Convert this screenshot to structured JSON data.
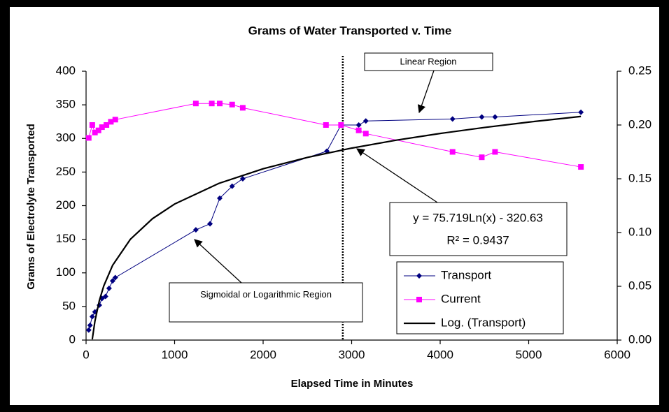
{
  "chart_data": {
    "type": "line",
    "title": "Grams of Water Transported v. Time",
    "xlabel": "Elapsed Time in Minutes",
    "ylabel": "Grams of Electrolyte Transported",
    "xlim": [
      0,
      6000
    ],
    "xticks": [
      0,
      1000,
      2000,
      3000,
      4000,
      5000,
      6000
    ],
    "ylim": [
      0,
      400
    ],
    "yticks": [
      0,
      50,
      100,
      150,
      200,
      250,
      300,
      350,
      400
    ],
    "y2lim": [
      0,
      0.25
    ],
    "y2ticks": [
      {
        "value": 0,
        "label": "0.00"
      },
      0.05,
      {
        "value": 0.1,
        "label": "0.10"
      },
      0.15,
      {
        "value": 0.2,
        "label": "0.20"
      },
      0.25
    ],
    "series": [
      {
        "name": "Transport",
        "color": "#000080",
        "marker": "diamond",
        "x": [
          30,
          45,
          70,
          100,
          150,
          180,
          220,
          260,
          300,
          330,
          1240,
          1400,
          1510,
          1650,
          1770,
          2720,
          2880,
          3080,
          3160,
          4140,
          4470,
          4620,
          5590
        ],
        "values": [
          15,
          22,
          35,
          42,
          52,
          62,
          65,
          77,
          88,
          93,
          164,
          173,
          211,
          229,
          240,
          281,
          320,
          320,
          326,
          329,
          332,
          332,
          339
        ]
      },
      {
        "name": "Current",
        "color": "#ff00ff",
        "marker": "square",
        "axis": "y2",
        "x": [
          30,
          70,
          100,
          140,
          180,
          230,
          280,
          330,
          1240,
          1420,
          1510,
          1650,
          1770,
          2710,
          2880,
          3080,
          3160,
          4140,
          4470,
          4620,
          5590
        ],
        "values": [
          0.188,
          0.2,
          0.193,
          0.195,
          0.198,
          0.2,
          0.203,
          0.205,
          0.22,
          0.22,
          0.22,
          0.219,
          0.216,
          0.2,
          0.2,
          0.195,
          0.192,
          0.175,
          0.17,
          0.175,
          0.161
        ]
      },
      {
        "name": "Log. (Transport)",
        "color": "#000000",
        "marker": "none",
        "x": [
          70,
          100,
          150,
          200,
          300,
          500,
          750,
          1000,
          1500,
          2000,
          2500,
          3000,
          3500,
          4000,
          4500,
          5000,
          5590
        ],
        "values": [
          1.1,
          28.1,
          58.8,
          80.6,
          111.3,
          149.9,
          180.6,
          202.4,
          233.1,
          254.9,
          271.8,
          285.6,
          297.3,
          307.4,
          316.3,
          324.3,
          332.7
        ]
      }
    ],
    "divider_x": 2900,
    "annotations": [
      "Linear Region",
      "Sigmoidal or Logarithmic Region",
      "y = 75.719Ln(x) - 320.63",
      "R² = 0.9437"
    ]
  }
}
